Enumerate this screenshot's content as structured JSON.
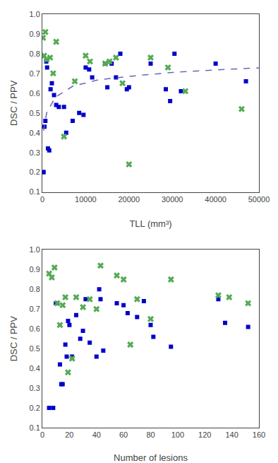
{
  "chart_data": [
    {
      "type": "scatter",
      "xlabel": "TLL (mm³)",
      "ylabel": "DSC / PPV",
      "xlim": [
        0,
        50000
      ],
      "ylim": [
        0.1,
        1.0
      ],
      "xticks": [
        0,
        10000,
        20000,
        30000,
        40000,
        50000
      ],
      "yticks": [
        0.1,
        0.2,
        0.3,
        0.4,
        0.5,
        0.6,
        0.7,
        0.8,
        0.9,
        {
          "value": 1.0,
          "label": "1.0"
        }
      ],
      "grid": false,
      "series": [
        {
          "type": "scatter",
          "color": "#0000cc",
          "marker": "square",
          "x": [
            150,
            300,
            500,
            700,
            900,
            1100,
            1300,
            1600,
            1900,
            2200,
            2700,
            3200,
            3800,
            5000,
            5500,
            7000,
            8500,
            9500,
            10000,
            10800,
            11500,
            14500,
            15000,
            16000,
            17000,
            18000,
            19500,
            20000,
            25000,
            28500,
            29500,
            30500,
            32000,
            40000,
            47000
          ],
          "values": [
            0.2,
            0.2,
            0.43,
            0.46,
            0.76,
            0.73,
            0.32,
            0.31,
            0.62,
            0.65,
            0.59,
            0.54,
            0.53,
            0.53,
            0.4,
            0.46,
            0.5,
            0.49,
            0.73,
            0.72,
            0.68,
            0.75,
            0.63,
            0.75,
            0.68,
            0.8,
            0.62,
            0.63,
            0.75,
            0.62,
            0.56,
            0.8,
            0.61,
            0.75,
            0.66
          ]
        },
        {
          "type": "scatter",
          "color": "#55aa55",
          "marker": "x",
          "x": [
            150,
            400,
            700,
            1000,
            1800,
            2500,
            3200,
            5000,
            7500,
            10000,
            11000,
            14500,
            15500,
            17000,
            18500,
            20000,
            25000,
            29000,
            33000,
            46000
          ],
          "values": [
            0.88,
            0.79,
            0.91,
            0.77,
            0.78,
            0.7,
            0.86,
            0.38,
            0.66,
            0.79,
            0.76,
            0.75,
            0.76,
            0.78,
            0.65,
            0.24,
            0.78,
            0.73,
            0.61,
            0.52
          ]
        },
        {
          "type": "line",
          "color": "#6666bb",
          "line_style": "dashed",
          "x": [
            300,
            1000,
            3000,
            7000,
            13000,
            20000,
            30000,
            40000,
            50000
          ],
          "values": [
            0.41,
            0.5,
            0.58,
            0.635,
            0.668,
            0.685,
            0.705,
            0.718,
            0.728
          ]
        }
      ]
    },
    {
      "type": "scatter",
      "xlabel": "Number of lesions",
      "ylabel": "DSC / PPV",
      "xlim": [
        0,
        160
      ],
      "ylim": [
        0.1,
        1.0
      ],
      "xticks": [
        0,
        20,
        40,
        60,
        80,
        100,
        120,
        140,
        160
      ],
      "yticks": [
        0.1,
        0.2,
        0.3,
        0.4,
        0.5,
        0.6,
        0.7,
        0.8,
        0.9,
        {
          "value": 1.0,
          "label": "1.0"
        }
      ],
      "grid": false,
      "series": [
        {
          "type": "scatter",
          "color": "#0000cc",
          "marker": "square",
          "x": [
            5,
            8,
            10,
            11,
            13,
            14,
            15,
            17,
            18,
            19,
            20,
            22,
            25,
            28,
            30,
            32,
            35,
            40,
            42,
            43,
            45,
            55,
            60,
            63,
            70,
            75,
            80,
            82,
            95,
            130,
            135,
            152
          ],
          "values": [
            0.2,
            0.2,
            0.73,
            0.73,
            0.42,
            0.32,
            0.32,
            0.52,
            0.46,
            0.64,
            0.62,
            0.46,
            0.67,
            0.55,
            0.59,
            0.75,
            0.53,
            0.46,
            0.8,
            0.75,
            0.49,
            0.73,
            0.72,
            0.68,
            0.66,
            0.74,
            0.62,
            0.56,
            0.51,
            0.75,
            0.63,
            0.61
          ]
        },
        {
          "type": "scatter",
          "color": "#55aa55",
          "marker": "x",
          "x": [
            5,
            7,
            9,
            11,
            13,
            15,
            17,
            19,
            22,
            25,
            30,
            35,
            40,
            43,
            55,
            60,
            65,
            70,
            80,
            95,
            130,
            138,
            152
          ],
          "values": [
            0.88,
            0.86,
            0.91,
            0.73,
            0.62,
            0.72,
            0.76,
            0.38,
            0.45,
            0.76,
            0.71,
            0.75,
            0.7,
            0.92,
            0.87,
            0.85,
            0.52,
            0.75,
            0.65,
            0.85,
            0.77,
            0.76,
            0.73
          ]
        }
      ]
    }
  ]
}
